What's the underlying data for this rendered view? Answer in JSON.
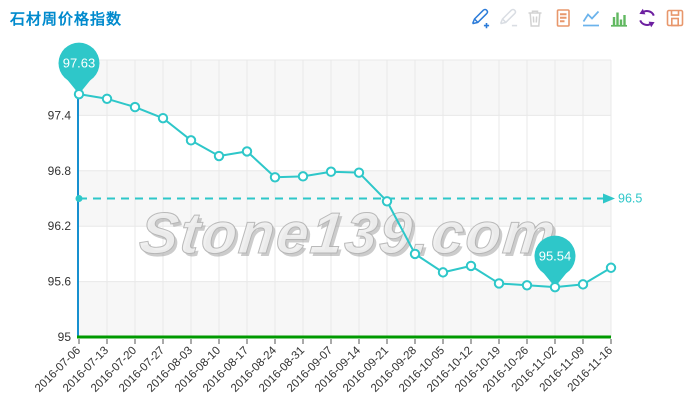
{
  "header": {
    "title": "石材周价格指数"
  },
  "toolbar": {
    "icons": [
      {
        "name": "mark-line-add-icon",
        "color": "#2b7bd9"
      },
      {
        "name": "mark-line-undo-icon",
        "color": "#d9dde3"
      },
      {
        "name": "mark-line-clear-icon",
        "color": "#d2d2d2"
      },
      {
        "name": "data-view-icon",
        "color": "#e8976c"
      },
      {
        "name": "line-chart-icon",
        "color": "#6bb3ec"
      },
      {
        "name": "bar-chart-icon",
        "color": "#61b861"
      },
      {
        "name": "restore-icon",
        "color": "#6c1fa0"
      },
      {
        "name": "save-image-icon",
        "color": "#e8976c"
      }
    ]
  },
  "watermark": {
    "text": "Stone139.com"
  },
  "chart_data": {
    "type": "line",
    "title": "石材周价格指数",
    "categories": [
      "2016-07-06",
      "2016-07-13",
      "2016-07-20",
      "2016-07-27",
      "2016-08-03",
      "2016-08-10",
      "2016-08-17",
      "2016-08-24",
      "2016-08-31",
      "2016-09-07",
      "2016-09-14",
      "2016-09-21",
      "2016-09-28",
      "2016-10-05",
      "2016-10-12",
      "2016-10-19",
      "2016-10-26",
      "2016-11-02",
      "2016-11-09",
      "2016-11-16"
    ],
    "series": [
      {
        "name": "石材周价格指数",
        "values": [
          97.63,
          97.58,
          97.49,
          97.37,
          97.13,
          96.96,
          97.01,
          96.73,
          96.74,
          96.79,
          96.78,
          96.47,
          95.9,
          95.7,
          95.77,
          95.58,
          95.56,
          95.54,
          95.57,
          95.75
        ]
      }
    ],
    "xlabel": "",
    "ylabel": "",
    "ylim": [
      95,
      98
    ],
    "yticks": [
      95,
      95.6,
      96.2,
      96.8,
      97.4
    ],
    "ytick_labels": [
      "95",
      "95.6",
      "96.2",
      "96.8",
      "97.4"
    ],
    "grid": true,
    "split_area": true,
    "legend_position": "none",
    "average_line": {
      "value": 96.5,
      "label": "96.5"
    },
    "max_point": {
      "index": 0,
      "label": "97.63"
    },
    "min_point": {
      "index": 17,
      "label": "95.54"
    },
    "colors": {
      "line": "#2ec7c9",
      "title": "#008acd",
      "y_axis": "#1790cf",
      "x_axis": "#009a00",
      "axis_text": "#333333",
      "grid_line": "#e8e8e8",
      "band": "#f7f7f7"
    }
  }
}
